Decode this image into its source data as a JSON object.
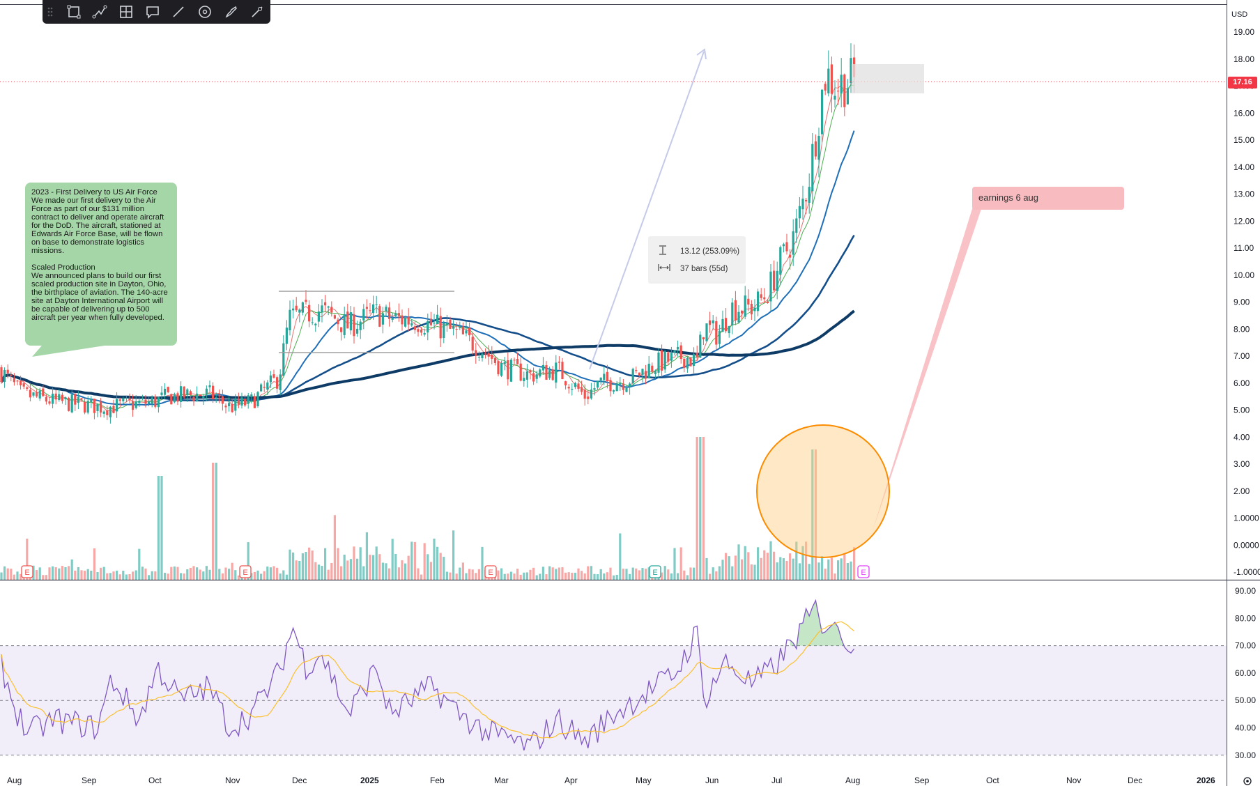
{
  "toolbar": {
    "tools": [
      {
        "name": "drag-handle-icon"
      },
      {
        "name": "rectangle-icon"
      },
      {
        "name": "path-icon"
      },
      {
        "name": "crosshair-frame-icon"
      },
      {
        "name": "comment-icon"
      },
      {
        "name": "line-icon"
      },
      {
        "name": "circle-target-icon"
      },
      {
        "name": "brush-icon"
      },
      {
        "name": "trend-line-icon"
      }
    ]
  },
  "price_axis": {
    "currency": "USD",
    "current_price_label": "17.16",
    "labels": [
      "19.00",
      "18.00",
      "17.00",
      "16.00",
      "15.00",
      "14.00",
      "13.00",
      "12.00",
      "11.00",
      "10.00",
      "9.00",
      "8.00",
      "7.00",
      "6.00",
      "5.00",
      "4.00",
      "3.00",
      "2.00",
      "1.0000",
      "0.0000",
      "-1.0000"
    ]
  },
  "rsi_axis": {
    "labels": [
      "90.00",
      "80.00",
      "70.00",
      "60.00",
      "50.00",
      "40.00",
      "30.00"
    ]
  },
  "time_axis": {
    "labels": [
      "Aug",
      "Sep",
      "Oct",
      "Nov",
      "Dec",
      "2025",
      "Feb",
      "Mar",
      "Apr",
      "May",
      "Jun",
      "Jul",
      "Aug",
      "Sep",
      "Oct",
      "Nov",
      "Dec",
      "2026"
    ]
  },
  "annotations": {
    "note_text": "2023 - First Delivery to US Air Force\nWe made our first delivery to the Air Force as part of our $131 million contract to deliver and operate aircraft for the DoD. The aircraft, stationed at Edwards Air Force Base, will be flown on base to demonstrate logistics missions.\n\nScaled Production\nWe announced plans to build our first scaled production site in Dayton, Ohio, the birthplace of aviation. The 140-acre site at Dayton International Airport will be capable of delivering up to 500 aircraft per year when fully developed.",
    "measure_price": "13.12 (253.09%)",
    "measure_bars": "37 bars (55d)",
    "earnings_callout": "earnings 6 aug",
    "earnings_marker": "E"
  },
  "colors": {
    "up": "#26a69a",
    "down": "#ef5350",
    "vol_up": "#80cbc4",
    "vol_down": "#f6a8a6",
    "ma_fast": "#4caf50",
    "ma_mid": "#1e6fb8",
    "ma_slow": "#134e8a",
    "ma_long": "#0d3b66",
    "rsi": "#7e57c2",
    "rsi_ma": "#fbc02d",
    "price_line": "#f23645"
  },
  "chart_data": {
    "type": "candlestick",
    "price_ylim": [
      -1,
      19.5
    ],
    "current_price": 17.16,
    "months": [
      "Aug",
      "Sep",
      "Oct",
      "Nov",
      "Dec",
      "Jan",
      "Feb",
      "Mar",
      "Apr",
      "May",
      "Jun",
      "Jul",
      "Aug"
    ],
    "monthly_close": [
      5.3,
      5.0,
      5.4,
      5.0,
      8.6,
      8.3,
      7.6,
      6.3,
      5.8,
      7.0,
      9.0,
      15.5,
      17.16
    ],
    "key_points": [
      {
        "date": "2024-08",
        "price": 5.4
      },
      {
        "date": "2024-09",
        "price": 5.0
      },
      {
        "date": "2024-10",
        "price": 5.4
      },
      {
        "date": "2024-11",
        "price": 5.0
      },
      {
        "date": "2024-12",
        "price": 8.6
      },
      {
        "date": "2025-01",
        "price": 8.5
      },
      {
        "date": "2025-02",
        "price": 8.0
      },
      {
        "date": "2025-03",
        "price": 6.3
      },
      {
        "date": "2025-04",
        "price": 5.2
      },
      {
        "date": "2025-05",
        "price": 7.0
      },
      {
        "date": "2025-06",
        "price": 9.5
      },
      {
        "date": "2025-07",
        "price": 17.5
      },
      {
        "date": "2025-08",
        "price": 17.16
      }
    ],
    "moving_averages": [
      {
        "period_label": "fast",
        "end_value": 16.6
      },
      {
        "period_label": "mid",
        "end_value": 15.4
      },
      {
        "period_label": "slow",
        "end_value": 12.4
      },
      {
        "period_label": "long",
        "end_value": 8.7
      }
    ],
    "rsi": {
      "ylim": [
        25,
        92
      ],
      "upper_band": 70,
      "middle": 50,
      "lower_band": 30,
      "last": 68,
      "ma_last": 77
    }
  }
}
